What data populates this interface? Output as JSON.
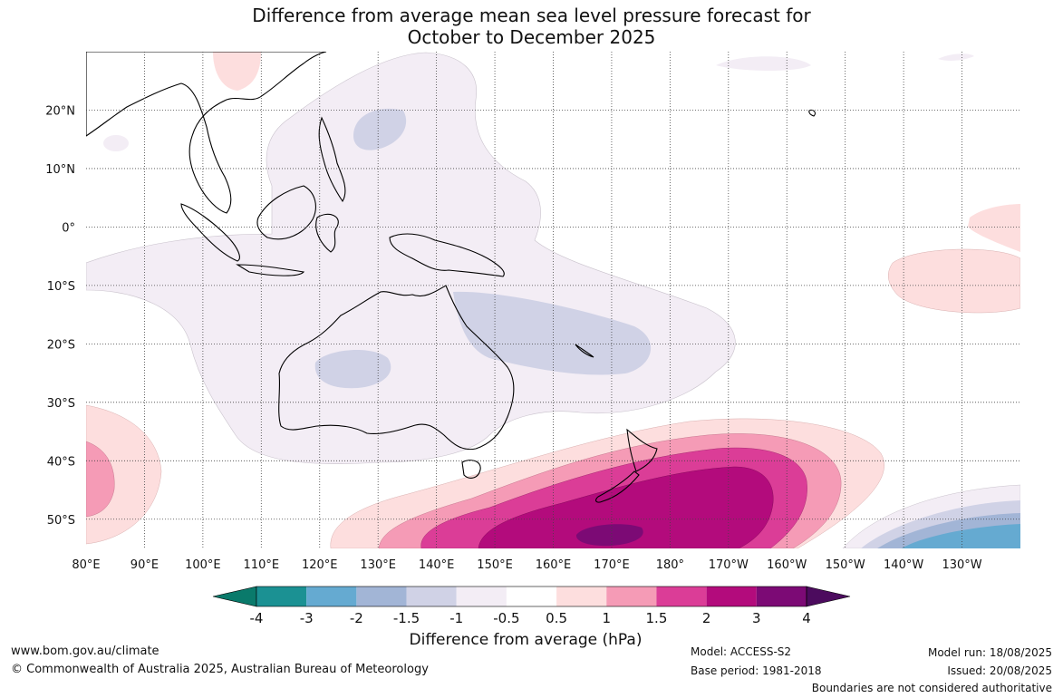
{
  "title": {
    "line1": "Difference from average mean sea level pressure forecast for",
    "line2": "October to December 2025"
  },
  "map": {
    "lon_labels": [
      "80°E",
      "90°E",
      "100°E",
      "110°E",
      "120°E",
      "130°E",
      "140°E",
      "150°E",
      "160°E",
      "170°E",
      "180°",
      "170°W",
      "160°W",
      "150°W",
      "140°W",
      "130°W"
    ],
    "lat_labels": [
      "20°N",
      "10°N",
      "0°",
      "10°S",
      "20°S",
      "30°S",
      "40°S",
      "50°S"
    ],
    "extent": {
      "lon_min": 80,
      "lon_max": 240,
      "lat_min": -55,
      "lat_max": 30
    },
    "gridlines": true,
    "anomaly_regions": [
      {
        "name": "Negative anomaly over Maritime Continent, Australia and Indian Ocean",
        "range_hPa": [
          -1,
          -0.5
        ]
      },
      {
        "name": "Negative anomaly east of Philippines",
        "range_hPa": [
          -1.5,
          -1
        ]
      },
      {
        "name": "Negative anomaly over Western Australia",
        "range_hPa": [
          -1.5,
          -1
        ]
      },
      {
        "name": "Negative anomaly Coral Sea",
        "range_hPa": [
          -1.5,
          -1
        ]
      },
      {
        "name": "Positive anomaly south of New Zealand",
        "range_hPa": [
          2,
          3
        ],
        "peak_range_hPa": [
          3,
          4
        ]
      },
      {
        "name": "Positive anomaly southern Indian Ocean",
        "range_hPa": [
          1,
          1.5
        ]
      },
      {
        "name": "Positive anomaly central Pacific",
        "range_hPa": [
          0.5,
          1
        ]
      },
      {
        "name": "Negative anomaly south-east Pacific",
        "range_hPa": [
          -3,
          -2
        ]
      }
    ]
  },
  "colorbar": {
    "ticks": [
      "-4",
      "-3",
      "-2",
      "-1.5",
      "-1",
      "-0.5",
      "0.5",
      "1",
      "1.5",
      "2",
      "3",
      "4"
    ],
    "colors": [
      "#0a7a6b",
      "#1b9193",
      "#65aad1",
      "#a2b5d6",
      "#d0d2e6",
      "#f3edf5",
      "#ffffff",
      "#fddede",
      "#f59bb6",
      "#db3d97",
      "#b30b7c",
      "#7c0a75",
      "#4c0b5e"
    ],
    "title": "Difference from average (hPa)"
  },
  "footer": {
    "url": "www.bom.gov.au/climate",
    "copyright": "© Commonwealth of Australia 2025, Australian Bureau of Meteorology",
    "model": "Model: ACCESS-S2",
    "base_period": "Base period: 1981-2018",
    "model_run": "Model run: 18/08/2025",
    "issued": "Issued: 20/08/2025",
    "disclaimer": "Boundaries are not considered authoritative"
  }
}
